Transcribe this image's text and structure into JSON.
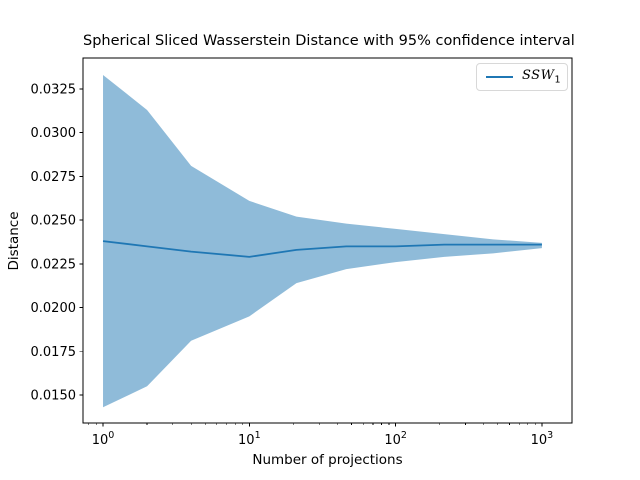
{
  "chart_data": {
    "type": "line",
    "title": "Spherical Sliced Wasserstein Distance with 95% confidence interval",
    "xlabel": "Number of projections",
    "ylabel": "Distance",
    "x_scale": "log",
    "grid": false,
    "x": [
      1,
      2,
      4,
      10,
      21,
      46,
      100,
      215,
      464,
      1000
    ],
    "series": [
      {
        "name": "SSW1",
        "values": [
          0.0238,
          0.0235,
          0.0232,
          0.0229,
          0.0233,
          0.0235,
          0.0235,
          0.0236,
          0.0236,
          0.0236
        ],
        "color": "#1f77b4",
        "line_width": 1.8
      }
    ],
    "band": {
      "name": "95% confidence interval",
      "lower": [
        0.0143,
        0.0155,
        0.0181,
        0.0195,
        0.0214,
        0.0222,
        0.0226,
        0.0229,
        0.0231,
        0.0234
      ],
      "upper": [
        0.0333,
        0.0313,
        0.0281,
        0.0261,
        0.0252,
        0.0248,
        0.0245,
        0.0242,
        0.0239,
        0.0237
      ],
      "color": "rgba(31,119,180,0.5)"
    },
    "xlim": [
      0.7296,
      1606
    ],
    "ylim": [
      0.0134,
      0.03427
    ],
    "x_ticks": [
      {
        "value": 1,
        "base": "10",
        "exp": "0"
      },
      {
        "value": 10,
        "base": "10",
        "exp": "1"
      },
      {
        "value": 100,
        "base": "10",
        "exp": "2"
      },
      {
        "value": 1000,
        "base": "10",
        "exp": "3"
      }
    ],
    "y_ticks": [
      {
        "value": 0.015,
        "label": "0.0150"
      },
      {
        "value": 0.0175,
        "label": "0.0175"
      },
      {
        "value": 0.02,
        "label": "0.0200"
      },
      {
        "value": 0.0225,
        "label": "0.0225"
      },
      {
        "value": 0.025,
        "label": "0.0250"
      },
      {
        "value": 0.0275,
        "label": "0.0275"
      },
      {
        "value": 0.03,
        "label": "0.0300"
      },
      {
        "value": 0.0325,
        "label": "0.0325"
      }
    ],
    "legend": {
      "position": "upper right",
      "entries": [
        {
          "label_main": "SSW",
          "label_sub": "1",
          "color": "#1f77b4"
        }
      ]
    },
    "colors": {
      "spine": "#000000",
      "background": "#ffffff"
    }
  }
}
